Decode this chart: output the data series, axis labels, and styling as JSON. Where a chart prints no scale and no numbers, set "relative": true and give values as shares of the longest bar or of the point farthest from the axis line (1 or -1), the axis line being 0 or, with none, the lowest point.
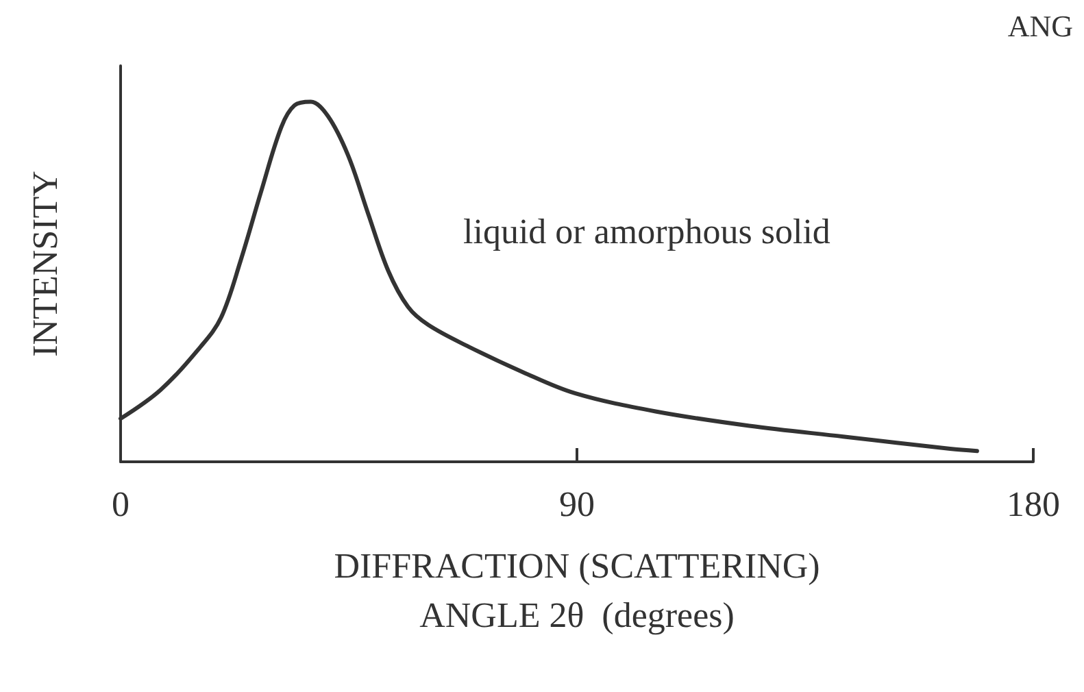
{
  "chart_data": {
    "type": "line",
    "xlabel": "DIFFRACTION (SCATTERING)\nANGLE 2θ  (degrees)",
    "ylabel": "INTENSITY",
    "relative": true,
    "xlim": [
      0,
      180
    ],
    "xticks": [
      0,
      90,
      180
    ],
    "grid": false,
    "marker": "none",
    "line_style": "solid",
    "x": [
      0,
      7.9,
      15.8,
      19.8,
      23.7,
      27.7,
      31.7,
      34.3,
      37.5,
      40.9,
      44.9,
      48.8,
      52.8,
      56.7,
      60.7,
      68.6,
      79.2,
      89.7,
      105.5,
      124,
      142.5,
      163.6,
      168.9
    ],
    "series": [
      {
        "color": "#333333",
        "values": [
          0.12,
          0.2,
          0.32,
          0.4,
          0.56,
          0.75,
          0.93,
          0.99,
          1.0,
          0.96,
          0.85,
          0.69,
          0.53,
          0.43,
          0.38,
          0.32,
          0.25,
          0.19,
          0.14,
          0.1,
          0.07,
          0.036,
          0.03
        ]
      }
    ],
    "annotations": [
      "liquid or amorphous solid",
      "ANG"
    ]
  }
}
